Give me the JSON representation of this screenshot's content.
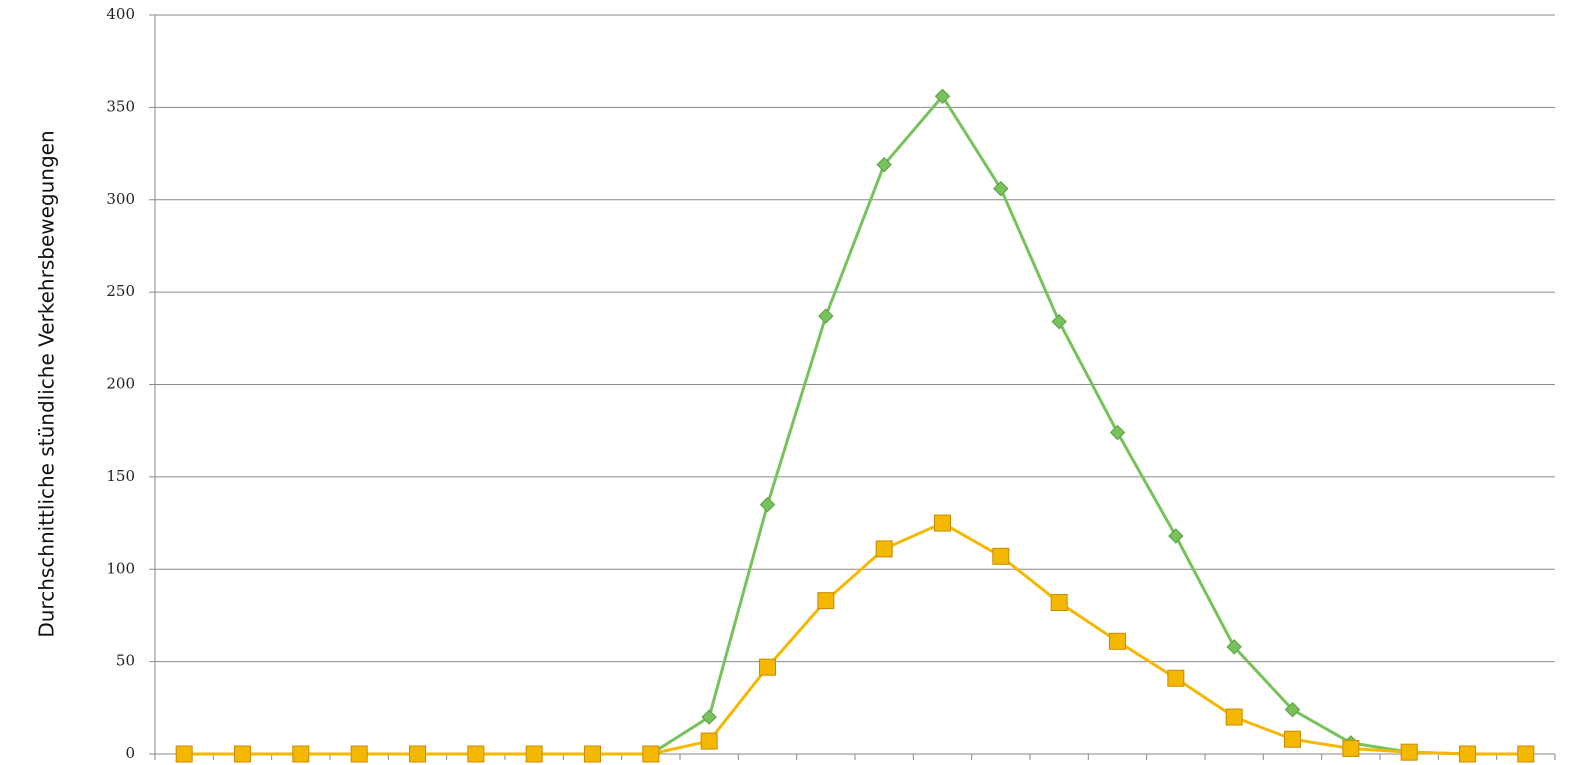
{
  "chart_data": {
    "type": "line",
    "y_axis_label": "Durchschnittliche stündliche Verkehrsbewegungen",
    "categories": [
      null,
      null,
      null,
      null,
      null,
      null,
      null,
      null,
      null,
      null,
      null,
      null,
      null,
      null,
      null,
      null,
      null,
      null,
      null,
      null,
      null,
      null,
      null,
      null
    ],
    "series": [
      {
        "color": "#77c25a",
        "marker": "diamond",
        "values": [
          0,
          0,
          0,
          0,
          0,
          0,
          0,
          0,
          0,
          20,
          135,
          237,
          319,
          356,
          306,
          234,
          174,
          118,
          58,
          24,
          6,
          1,
          0,
          0
        ]
      },
      {
        "color": "#f5b800",
        "marker": "square",
        "values": [
          0,
          0,
          0,
          0,
          0,
          0,
          0,
          0,
          0,
          7,
          47,
          83,
          111,
          125,
          107,
          82,
          61,
          41,
          20,
          8,
          3,
          1,
          0,
          0
        ]
      }
    ],
    "ylim": [
      0,
      400
    ],
    "yticks": [
      0,
      50,
      100,
      150,
      200,
      250,
      300,
      350,
      400
    ],
    "grid": true
  }
}
